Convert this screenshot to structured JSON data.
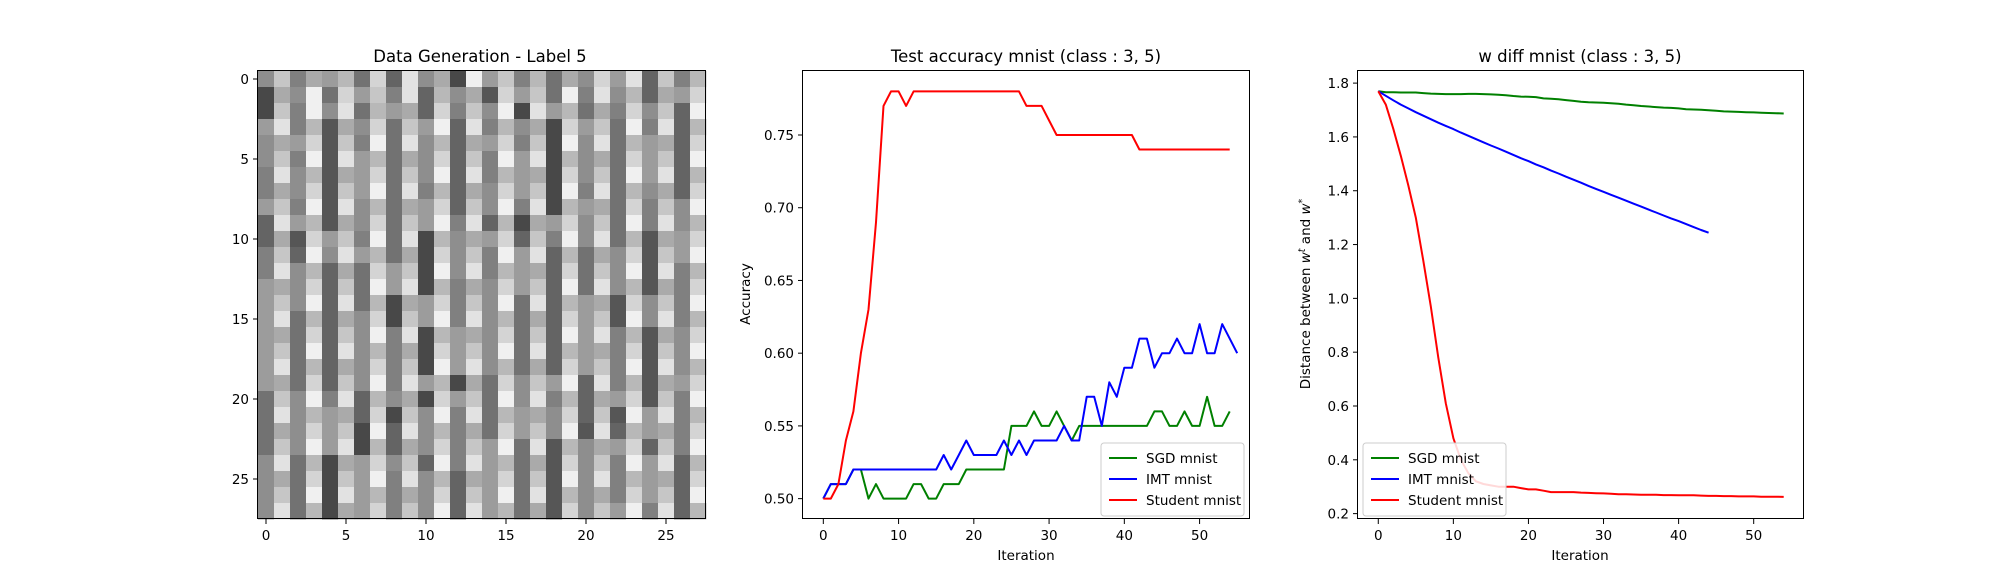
{
  "chart_data": [
    {
      "type": "heatmap",
      "title": "Data Generation - Label 5",
      "xticks": [
        0,
        5,
        10,
        15,
        20,
        25
      ],
      "yticks": [
        0,
        5,
        10,
        15,
        20,
        25
      ],
      "xlim": [
        -0.5,
        27.5
      ],
      "ylim": [
        27.5,
        -0.5
      ],
      "colormap": "gray",
      "grid_size": [
        28,
        28
      ]
    },
    {
      "type": "line",
      "title": "Test accuracy mnist (class : 3, 5)",
      "xlabel": "Iteration",
      "ylabel": "Accuracy",
      "xlim": [
        -2.7,
        56.7
      ],
      "ylim": [
        0.486,
        0.794
      ],
      "xticks": [
        0,
        10,
        20,
        30,
        40,
        50
      ],
      "yticks": [
        0.5,
        0.55,
        0.6,
        0.65,
        0.7,
        0.75
      ],
      "ytick_labels": [
        "0.50",
        "0.55",
        "0.60",
        "0.65",
        "0.70",
        "0.75"
      ],
      "legend_position": "lower right",
      "series": [
        {
          "name": "SGD mnist",
          "color": "#008000",
          "x_start": 0,
          "values": [
            0.5,
            0.51,
            0.51,
            0.51,
            0.52,
            0.52,
            0.5,
            0.51,
            0.5,
            0.5,
            0.5,
            0.5,
            0.51,
            0.51,
            0.5,
            0.5,
            0.51,
            0.51,
            0.51,
            0.52,
            0.52,
            0.52,
            0.52,
            0.52,
            0.52,
            0.55,
            0.55,
            0.55,
            0.56,
            0.55,
            0.55,
            0.56,
            0.55,
            0.54,
            0.55,
            0.55,
            0.55,
            0.55,
            0.55,
            0.55,
            0.55,
            0.55,
            0.55,
            0.55,
            0.56,
            0.56,
            0.55,
            0.55,
            0.56,
            0.55,
            0.55,
            0.57,
            0.55,
            0.55,
            0.56
          ]
        },
        {
          "name": "IMT mnist",
          "color": "#0000ff",
          "x_start": 0,
          "values": [
            0.5,
            0.51,
            0.51,
            0.51,
            0.52,
            0.52,
            0.52,
            0.52,
            0.52,
            0.52,
            0.52,
            0.52,
            0.52,
            0.52,
            0.52,
            0.52,
            0.53,
            0.52,
            0.53,
            0.54,
            0.53,
            0.53,
            0.53,
            0.53,
            0.54,
            0.53,
            0.54,
            0.53,
            0.54,
            0.54,
            0.54,
            0.54,
            0.55,
            0.54,
            0.54,
            0.57,
            0.57,
            0.55,
            0.58,
            0.57,
            0.59,
            0.59,
            0.61,
            0.61,
            0.59,
            0.6,
            0.6,
            0.61,
            0.6,
            0.6,
            0.62,
            0.6,
            0.6,
            0.62,
            0.61,
            0.6
          ]
        },
        {
          "name": "Student mnist",
          "color": "#ff0000",
          "x_start": 0,
          "values": [
            0.5,
            0.5,
            0.51,
            0.54,
            0.56,
            0.6,
            0.63,
            0.69,
            0.77,
            0.78,
            0.78,
            0.77,
            0.78,
            0.78,
            0.78,
            0.78,
            0.78,
            0.78,
            0.78,
            0.78,
            0.78,
            0.78,
            0.78,
            0.78,
            0.78,
            0.78,
            0.78,
            0.77,
            0.77,
            0.77,
            0.76,
            0.75,
            0.75,
            0.75,
            0.75,
            0.75,
            0.75,
            0.75,
            0.75,
            0.75,
            0.75,
            0.75,
            0.74,
            0.74,
            0.74,
            0.74,
            0.74,
            0.74,
            0.74,
            0.74,
            0.74,
            0.74,
            0.74,
            0.74,
            0.74
          ]
        }
      ]
    },
    {
      "type": "line",
      "title": "w diff mnist (class : 3, 5)",
      "xlabel": "Iteration",
      "ylabel": "Distance between w^t and w^*",
      "xlim": [
        -2.7,
        56.7
      ],
      "ylim": [
        0.18,
        1.845
      ],
      "xticks": [
        0,
        10,
        20,
        30,
        40,
        50
      ],
      "yticks": [
        0.2,
        0.4,
        0.6,
        0.8,
        1.0,
        1.2,
        1.4,
        1.6,
        1.8
      ],
      "ytick_labels": [
        "0.2",
        "0.4",
        "0.6",
        "0.8",
        "1.0",
        "1.2",
        "1.4",
        "1.6",
        "1.8"
      ],
      "legend_position": "lower left",
      "series": [
        {
          "name": "SGD mnist",
          "color": "#008000",
          "x_start": 0,
          "values": [
            1.77,
            1.766,
            1.766,
            1.765,
            1.765,
            1.765,
            1.763,
            1.761,
            1.76,
            1.759,
            1.759,
            1.759,
            1.76,
            1.76,
            1.759,
            1.758,
            1.757,
            1.755,
            1.752,
            1.75,
            1.749,
            1.748,
            1.743,
            1.742,
            1.74,
            1.737,
            1.734,
            1.731,
            1.729,
            1.728,
            1.727,
            1.725,
            1.723,
            1.72,
            1.718,
            1.715,
            1.713,
            1.711,
            1.709,
            1.708,
            1.706,
            1.703,
            1.702,
            1.701,
            1.699,
            1.697,
            1.695,
            1.694,
            1.693,
            1.692,
            1.691,
            1.69,
            1.689,
            1.688,
            1.687
          ]
        },
        {
          "name": "IMT mnist",
          "color": "#0000ff",
          "x_start": 0,
          "values": [
            1.77,
            1.753,
            1.736,
            1.72,
            1.706,
            1.692,
            1.679,
            1.666,
            1.653,
            1.641,
            1.629,
            1.616,
            1.604,
            1.592,
            1.58,
            1.568,
            1.557,
            1.545,
            1.533,
            1.521,
            1.51,
            1.498,
            1.487,
            1.475,
            1.464,
            1.452,
            1.441,
            1.43,
            1.418,
            1.407,
            1.396,
            1.385,
            1.374,
            1.363,
            1.352,
            1.341,
            1.33,
            1.319,
            1.308,
            1.297,
            1.287,
            1.276,
            1.265,
            1.254,
            1.244
          ]
        },
        {
          "name": "Student mnist",
          "color": "#ff0000",
          "x_start": 0,
          "values": [
            1.77,
            1.72,
            1.63,
            1.53,
            1.42,
            1.3,
            1.14,
            0.97,
            0.78,
            0.61,
            0.48,
            0.4,
            0.35,
            0.32,
            0.31,
            0.305,
            0.3,
            0.3,
            0.3,
            0.295,
            0.29,
            0.29,
            0.285,
            0.28,
            0.28,
            0.28,
            0.28,
            0.278,
            0.277,
            0.276,
            0.275,
            0.274,
            0.272,
            0.272,
            0.271,
            0.27,
            0.27,
            0.27,
            0.269,
            0.269,
            0.268,
            0.268,
            0.268,
            0.267,
            0.266,
            0.266,
            0.265,
            0.265,
            0.264,
            0.264,
            0.264,
            0.263,
            0.263,
            0.263,
            0.262
          ]
        }
      ]
    }
  ],
  "heatmap_pixels": "8C7A9B6D5E8A3F9C7B6A8D9E5C7B3A8F6D9C7E5B8A4D9C6F7E8B5A9D3C7F8E6B9A5D7C8F3E9B6A7D8C5F9E7B4A8D6C9F5E7B8A3D9C6F7E5B8A9D4C7F6E8B5A9D7C3F8E6B9A5D8C7F4E9B6A8D5C7F9E3B8A6D9C5F7E8B4A9D6C8F5E7B9A3D8C6F9E5B7A8D4C9F6E7B5A8D9C3F7E6B8A5D9C7F4E8B6A9D5C8F7E3B9A6D7C8F5E9B4A8D6C9F7E5B3A9D8C6F7E8B5A4D9C7F6E3B8A9D5C7F8E6B4A9D7C5F8E9B6A3D8C7F9E5B6A8D4C9F7E8B5A6D9C3F8E7B9A5D6C8F4E7B9A8D5C6F9E3B7A8D9C5F6E8B4A7D9C8F5E6B3A9D7C8F6E5B9A4D8C7F9E6B5A8D3C9F7E8B6A5D9C4F8E7B9A6D5C8F7E3B9A8D6C5F9E7B4A8D9C6F5E8B7A3D9C8F6E5B9A7D4C8F9E6B5A8D7C3F9E8B6A5D9C7F4E8B9A6D5C8F7E9B3A6D8C9F5E7B4A9D6C8F7E5B8A3D9C6F8E7B5A9D4C7F6E8B9A5D3C8F7E6B9A8D5C4F9E7B6A8D9C3F5E8B7A6D9C8F4E5B9A7D6C8F9E3B5A8D7C9F6E4B8A9D5C7F8E6B3A9D8C5F7E9B6A4D8C7F9E5B8A6D3C9F7E8B5A9D6C4F8E7B9A5D8C6F3E9B7A8D5C9F6E4B8A7D9C5F8E6B3A9D7C8F5E9B6A4D8C9F7E5B8A6D3C7F9E8B5A9D6C4F7E8B9A5D7C6F3E9B8A7D5C9F6E4B8A9D7C5F8E6B3A9D8C7F5E9B6A4D7C9F8E5B8A6D3C9F7E8B5A9D6C4F8E7B9A5D7C6F3E8B9A7D5C8F6E4B9A8D7C5F9E6B3A8D9C7F5E8B6A4D9C8F7E5B9A6D3C8F9E7B5A8D6C4F9E7B8A5D9C6F3E8B7A9D5C8F6E4B9A7D8C5F9E6B3A8D7C9F5E8B6A4D9C7F8E5B9A6D3C8F7E9B5A8D6C4F9E7B8A5D7C6F3E9B8A7D5C9F6E4B8A9D7C5F8E6B3A9D8C7F5E9B6A4D7C8F9E5B8A6D3C9F7E8B5A9D6C4F7E8B9A5D7C6F3E8B9A7D5C8F6E4B9A8D7C5F9E6B3A8D9C7F5E8B6A4D9C8F7E5B9A6D3C8F9E7B5A8D6C4F9E7B8A5D9C6F3E8B7A9D5C8F6E4B9A7D8C5F9E6B3A8D7C9F5E8B6A4D9C7F8E5B9A6D3C8F7E9B5A8D6C4F9E7B8A5D7C6F3E9B8A7D5C9F6E4B8A9D7C5F8E6B3A9D8C7F5E9B6A4D7C8F9E5B8A6D3C9F7E8B5A9D6C4F7E8B9A5D7C6F3E8B9A7D5C8F6E4B9A8D7C5F9E6B3A8D9C7F5E8B6A4D9C8F7E5B9A6D3C8F9E7B5A8D6C4F9E7B8A5D9C6F3E8B7A9D5C8F6E4B9A7D8C5F9E6B3A8D7C9F5E8B6A4D9C7F8E5B9A6D3C8F7E9B5A8D6C4F9E7B8A5D7C6F3E9B8A7D5C9F6E4B8A9D7C5F8E6B3A9D8C7F5E9B6A4D7C8F9E5B8A6D3C9F7E8B5A9D6C4F7E8B9A5D7C6F3E8B9A7D5C8F6E4B9A8D7C5F9E6B3A8D9C7F5E8B6A4D9C8F7E5B9A6D3C8F9E7B5A8D6C4F9E7B8A5D9C6F3E8B7A9D5C8F6E4B9A7D8C5F9E6B3A8D7C9F5E8B6A4D9C7F8E5B9A6D3C8F7E9B5A8D6C4F9E7B8A5D7C6F3E9B8A7D5C9F6E4B8A9D7C5F8E6B3A9D8C7F5E9B6A4D7C8F9E5B8A6D3C9F7E8B5A9D6C4F7E8B9A5D7C6F3E8B9A7D5C8F6E4B9A8D7C5F9E6B3A8D9C7F5E8B6A4"
}
